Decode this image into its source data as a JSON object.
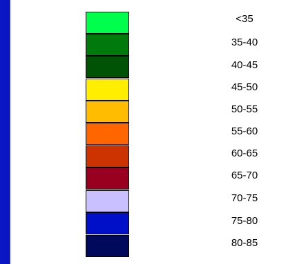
{
  "legend": {
    "items": [
      {
        "label": "<35",
        "color": "#00ff4c"
      },
      {
        "label": "35-40",
        "color": "#007a0a"
      },
      {
        "label": "40-45",
        "color": "#005204"
      },
      {
        "label": "45-50",
        "color": "#ffee00"
      },
      {
        "label": "50-55",
        "color": "#ffbc00"
      },
      {
        "label": "55-60",
        "color": "#ff6600"
      },
      {
        "label": "60-65",
        "color": "#cc3300"
      },
      {
        "label": "65-70",
        "color": "#99001f"
      },
      {
        "label": "70-75",
        "color": "#c8c0ff"
      },
      {
        "label": "75-80",
        "color": "#0010c8"
      },
      {
        "label": "80-85",
        "color": "#000a5c"
      }
    ]
  },
  "colors": {
    "side_bar": "#0a16c2"
  }
}
